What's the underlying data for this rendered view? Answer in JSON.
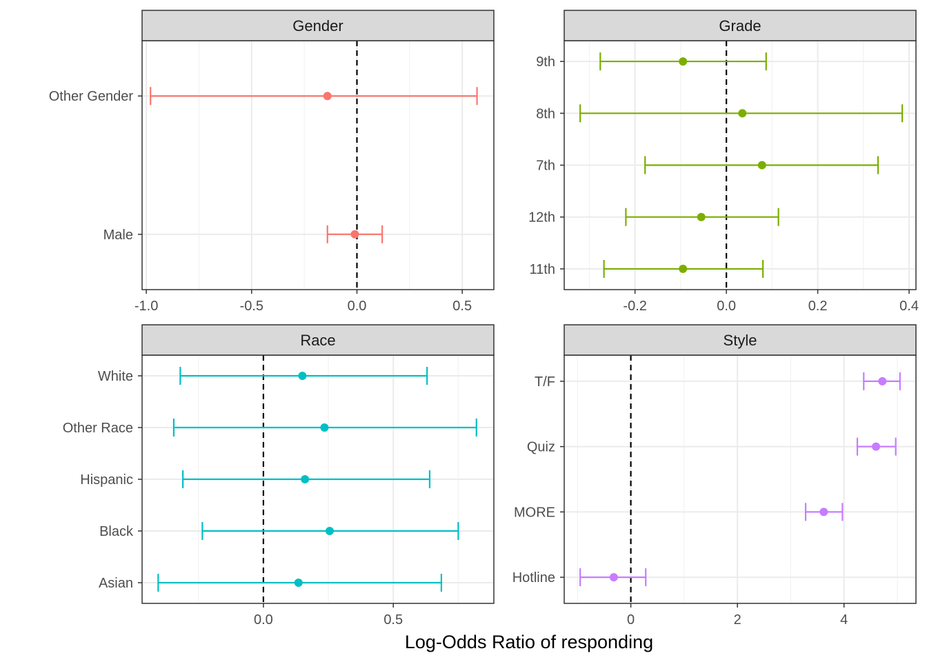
{
  "chart_data": {
    "type": "scatter",
    "xlabel": "Log-Odds Ratio of responding",
    "reference_line": 0,
    "grid": true,
    "legend": "none",
    "panels": [
      {
        "title": "Gender",
        "color": "#F8766D",
        "xlim": [
          -1.02,
          0.65
        ],
        "xticks": [
          -1.0,
          -0.5,
          0.0,
          0.5
        ],
        "xtick_labels": [
          "-1.0",
          "-0.5",
          "0.0",
          "0.5"
        ],
        "categories": [
          "Other Gender",
          "Male"
        ],
        "estimates": [
          -0.14,
          -0.01
        ],
        "lower": [
          -0.98,
          -0.14
        ],
        "upper": [
          0.57,
          0.12
        ]
      },
      {
        "title": "Grade",
        "color": "#7CAE00",
        "xlim": [
          -0.355,
          0.415
        ],
        "xticks": [
          -0.2,
          0.0,
          0.2,
          0.4
        ],
        "xtick_labels": [
          "-0.2",
          "0.0",
          "0.2",
          "0.4"
        ],
        "categories": [
          "9th",
          "8th",
          "7th",
          "12th",
          "11th"
        ],
        "estimates": [
          -0.095,
          0.035,
          0.078,
          -0.055,
          -0.095
        ],
        "lower": [
          -0.276,
          -0.32,
          -0.178,
          -0.22,
          -0.268
        ],
        "upper": [
          0.087,
          0.385,
          0.332,
          0.114,
          0.08
        ]
      },
      {
        "title": "Race",
        "color": "#00BFC4",
        "xlim": [
          -0.467,
          0.887
        ],
        "xticks": [
          0.0,
          0.5
        ],
        "xtick_labels": [
          "0.0",
          "0.5"
        ],
        "categories": [
          "White",
          "Other Race",
          "Hispanic",
          "Black",
          "Asian"
        ],
        "estimates": [
          0.15,
          0.235,
          0.16,
          0.255,
          0.135
        ],
        "lower": [
          -0.32,
          -0.345,
          -0.31,
          -0.235,
          -0.405
        ],
        "upper": [
          0.63,
          0.82,
          0.64,
          0.75,
          0.685
        ]
      },
      {
        "title": "Style",
        "color": "#C77CFF",
        "xlim": [
          -1.25,
          5.35
        ],
        "xticks": [
          0,
          2,
          4
        ],
        "xtick_labels": [
          "0",
          "2",
          "4"
        ],
        "categories": [
          "T/F",
          "Quiz",
          "MORE",
          "Hotline"
        ],
        "estimates": [
          4.72,
          4.6,
          3.62,
          -0.32
        ],
        "lower": [
          4.37,
          4.25,
          3.28,
          -0.95
        ],
        "upper": [
          5.05,
          4.97,
          3.97,
          0.28
        ]
      }
    ]
  }
}
